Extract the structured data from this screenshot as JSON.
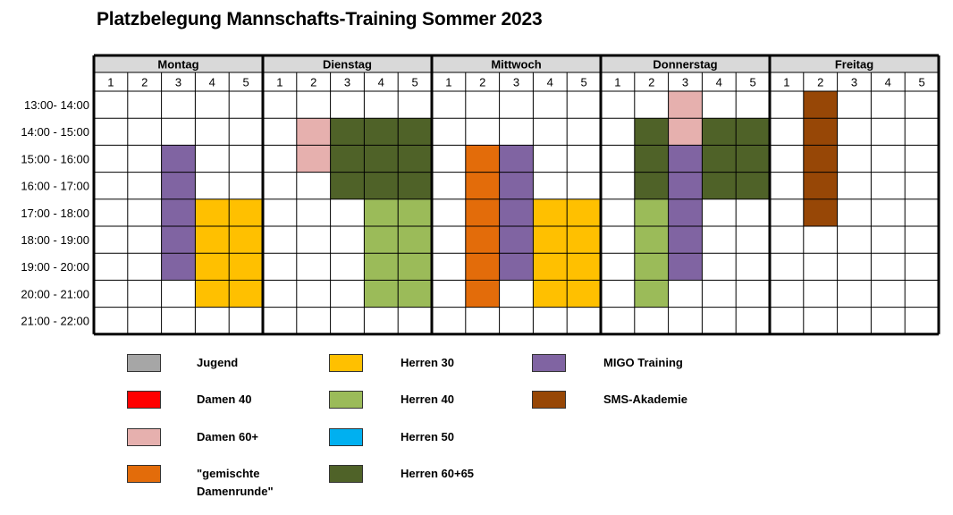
{
  "title": "Platzbelegung Mannschafts-Training Sommer 2023",
  "days": [
    "Montag",
    "Dienstag",
    "Mittwoch",
    "Donnerstag",
    "Freitag"
  ],
  "courts": [
    "1",
    "2",
    "3",
    "4",
    "5"
  ],
  "time_slots": [
    "13:00- 14:00",
    "14:00 - 15:00",
    "15:00 - 16:00",
    "16:00 - 17:00",
    "17:00 - 18:00",
    "18:00 - 19:00",
    "19:00 - 20:00",
    "20:00 - 21:00",
    "21:00 - 22:00"
  ],
  "colors": {
    "header_bg": "#d9d9d9",
    "Jugend": "#a6a6a6",
    "Damen 40": "#ff0000",
    "Damen 60+": "#e6b0ae",
    "gemischte Damenrunde": "#e36c0a",
    "Herren 30": "#ffc000",
    "Herren 40": "#9bbb59",
    "Herren 50": "#00b0f0",
    "Herren 60+65": "#4f6228",
    "MIGO Training": "#8064a2",
    "SMS-Akademie": "#974706"
  },
  "legend": [
    {
      "key": "Jugend",
      "label": "Jugend"
    },
    {
      "key": "Damen 40",
      "label": "Damen 40"
    },
    {
      "key": "Damen 60+",
      "label": "Damen 60+"
    },
    {
      "key": "gemischte Damenrunde",
      "label": "\"gemischte",
      "label2": "Damenrunde\""
    },
    {
      "key": "Herren 30",
      "label": "Herren 30"
    },
    {
      "key": "Herren 40",
      "label": "Herren 40"
    },
    {
      "key": "Herren 50",
      "label": "Herren 50"
    },
    {
      "key": "Herren 60+65",
      "label": "Herren 60+65"
    },
    {
      "key": "MIGO Training",
      "label": "MIGO Training"
    },
    {
      "key": "SMS-Akademie",
      "label": "SMS-Akademie"
    }
  ],
  "bookings": [
    {
      "day": 0,
      "court": 3,
      "from": 2,
      "to": 6,
      "group": "MIGO Training"
    },
    {
      "day": 0,
      "court": 4,
      "from": 4,
      "to": 7,
      "group": "Herren 30"
    },
    {
      "day": 0,
      "court": 5,
      "from": 4,
      "to": 7,
      "group": "Herren 30"
    },
    {
      "day": 1,
      "court": 2,
      "from": 1,
      "to": 2,
      "group": "Damen 60+"
    },
    {
      "day": 1,
      "court": 3,
      "from": 1,
      "to": 3,
      "group": "Herren 60+65"
    },
    {
      "day": 1,
      "court": 4,
      "from": 1,
      "to": 3,
      "group": "Herren 60+65"
    },
    {
      "day": 1,
      "court": 5,
      "from": 1,
      "to": 3,
      "group": "Herren 60+65"
    },
    {
      "day": 1,
      "court": 4,
      "from": 4,
      "to": 7,
      "group": "Herren 40"
    },
    {
      "day": 1,
      "court": 5,
      "from": 4,
      "to": 7,
      "group": "Herren 40"
    },
    {
      "day": 2,
      "court": 2,
      "from": 2,
      "to": 7,
      "group": "gemischte Damenrunde"
    },
    {
      "day": 2,
      "court": 3,
      "from": 2,
      "to": 6,
      "group": "MIGO Training"
    },
    {
      "day": 2,
      "court": 4,
      "from": 4,
      "to": 7,
      "group": "Herren 30"
    },
    {
      "day": 2,
      "court": 5,
      "from": 4,
      "to": 7,
      "group": "Herren 30"
    },
    {
      "day": 3,
      "court": 3,
      "from": 0,
      "to": 1,
      "group": "Damen 60+"
    },
    {
      "day": 3,
      "court": 2,
      "from": 1,
      "to": 3,
      "group": "Herren 60+65"
    },
    {
      "day": 3,
      "court": 4,
      "from": 1,
      "to": 3,
      "group": "Herren 60+65"
    },
    {
      "day": 3,
      "court": 5,
      "from": 1,
      "to": 3,
      "group": "Herren 60+65"
    },
    {
      "day": 3,
      "court": 3,
      "from": 2,
      "to": 6,
      "group": "MIGO Training"
    },
    {
      "day": 3,
      "court": 2,
      "from": 4,
      "to": 7,
      "group": "Herren 40"
    },
    {
      "day": 4,
      "court": 2,
      "from": 0,
      "to": 4,
      "group": "SMS-Akademie"
    }
  ]
}
